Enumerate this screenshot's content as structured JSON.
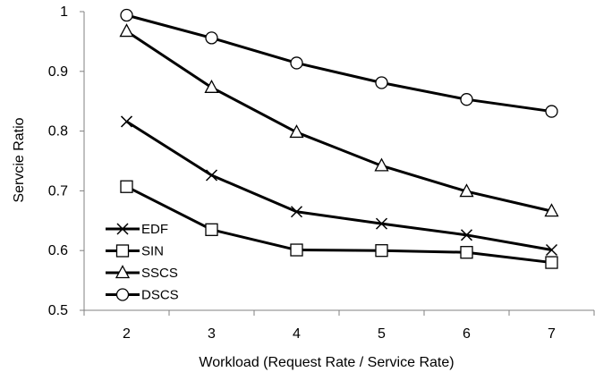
{
  "chart_data": {
    "type": "line",
    "title": "",
    "xlabel": "Workload (Request Rate / Service Rate)",
    "ylabel": "Servcie Ratio",
    "x": [
      2,
      3,
      4,
      5,
      6,
      7
    ],
    "xticks": [
      "2",
      "3",
      "4",
      "5",
      "6",
      "7"
    ],
    "ylim": [
      0.5,
      1
    ],
    "yticks": [
      "0.5",
      "0.6",
      "0.7",
      "0.8",
      "0.9",
      "1"
    ],
    "grid": false,
    "legend": "bottom-left",
    "series": [
      {
        "name": "EDF",
        "marker": "x-icon",
        "values": [
          0.816,
          0.726,
          0.665,
          0.645,
          0.626,
          0.601
        ]
      },
      {
        "name": "SIN",
        "marker": "square-icon",
        "values": [
          0.707,
          0.635,
          0.601,
          0.6,
          0.597,
          0.58
        ]
      },
      {
        "name": "SSCS",
        "marker": "triangle-icon",
        "values": [
          0.967,
          0.873,
          0.798,
          0.742,
          0.699,
          0.666
        ]
      },
      {
        "name": "DSCS",
        "marker": "circle-icon",
        "values": [
          0.994,
          0.956,
          0.914,
          0.881,
          0.853,
          0.833
        ]
      }
    ]
  }
}
